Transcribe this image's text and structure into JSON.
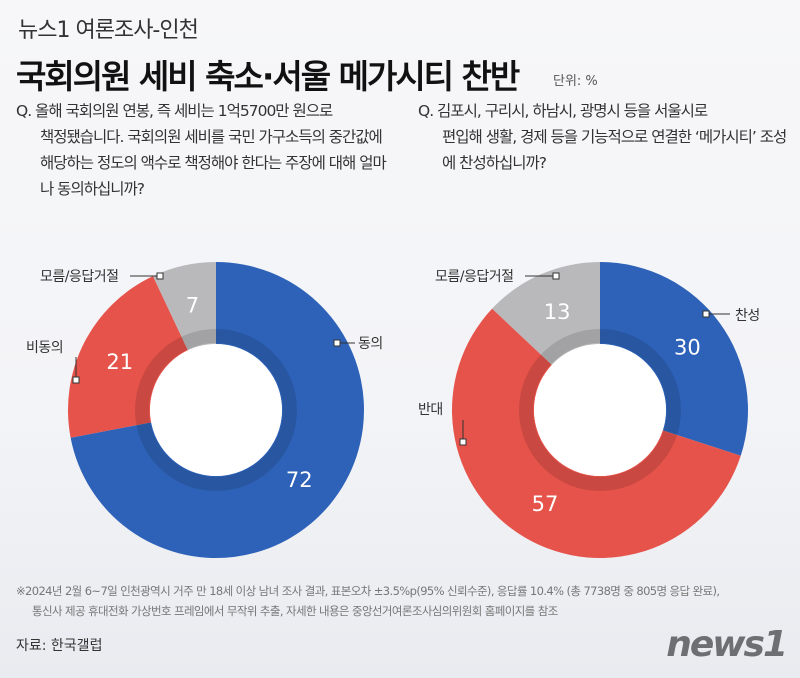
{
  "header": {
    "kicker": "뉴스1 여론조사-인천",
    "title": "국회의원 세비 축소·서울 메가시티 찬반",
    "unit": "단위: %"
  },
  "questions": [
    {
      "first": "Q. 올해 국회의원 연봉, 즉 세비는 1억5700만 원으로",
      "rest": "책정됐습니다. 국회의원 세비를 국민 가구소득의 중간값에 해당하는 정도의 액수로 책정해야 한다는 주장에 대해 얼마나 동의하십니까?"
    },
    {
      "first": "Q. 김포시, 구리시, 하남시, 광명시 등을 서울시로",
      "rest": "편입해 생활, 경제 등을 기능적으로 연결한 ‘메가시티’ 조성에 찬성하십니까?"
    }
  ],
  "chart_data": [
    {
      "type": "pie",
      "donut": true,
      "categories": [
        "동의",
        "비동의",
        "모름/응답거절"
      ],
      "values": [
        72,
        21,
        7
      ],
      "colors": [
        "#2e62b8",
        "#e5534a",
        "#b9b9bb"
      ]
    },
    {
      "type": "pie",
      "donut": true,
      "categories": [
        "찬성",
        "반대",
        "모름/응답거절"
      ],
      "values": [
        30,
        57,
        13
      ],
      "colors": [
        "#2e62b8",
        "#e5534a",
        "#b9b9bb"
      ]
    }
  ],
  "footer": {
    "note1": "※2024년 2월 6~7일 인천광역시 거주 만 18세 이상 남녀 조사 결과, 표본오차 ±3.5%p(95% 신뢰수준), 응답률 10.4% (총 7738명 중 805명 응답 완료),",
    "note2": "통신사 제공 휴대전화 가상번호 프레임에서 무작위 추출, 자세한 내용은 중앙선거여론조사심의위원회 홈페이지를 참조",
    "source": "자료: 한국갤럽",
    "logo": "news1"
  }
}
